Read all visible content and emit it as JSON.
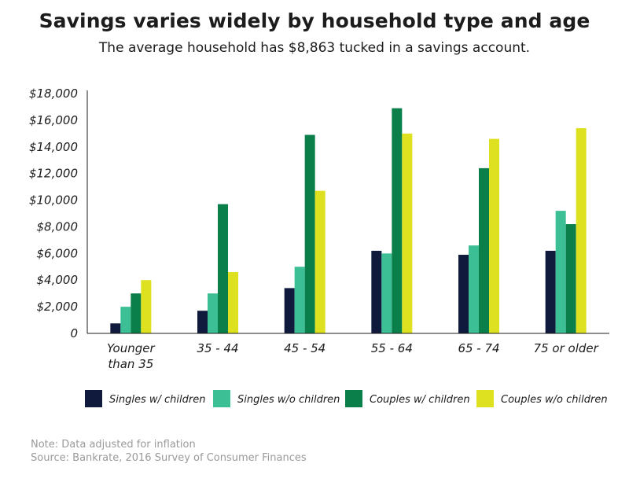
{
  "title": "Savings varies widely by household type and age",
  "subtitle": "The average household has $8,863 tucked in a savings account.",
  "note": "Note: Data adjusted for inflation",
  "source": "Source: Bankrate, 2016 Survey of Consumer Finances",
  "chart_data": {
    "type": "bar",
    "categories": [
      [
        "Younger",
        "than 35"
      ],
      [
        "35 - 44"
      ],
      [
        "45 - 54"
      ],
      [
        "55 - 64"
      ],
      [
        "65 - 74"
      ],
      [
        "75 or older"
      ]
    ],
    "series": [
      {
        "name": "Singles w/ children",
        "color": "#0f1a3c",
        "values": [
          750,
          1700,
          3400,
          6200,
          5900,
          6200
        ]
      },
      {
        "name": "Singles w/o children",
        "color": "#3dbf96",
        "values": [
          2000,
          3000,
          5000,
          6000,
          6600,
          9200
        ]
      },
      {
        "name": "Couples w/ children",
        "color": "#0a7f4a",
        "values": [
          3000,
          9700,
          14900,
          16900,
          12400,
          8200
        ]
      },
      {
        "name": "Couples w/o children",
        "color": "#dde120",
        "values": [
          4000,
          4600,
          10700,
          15000,
          14600,
          15400
        ]
      }
    ],
    "ylim": [
      0,
      18000
    ],
    "yticks": [
      "0",
      "$2,000",
      "$4,000",
      "$6,000",
      "$8,000",
      "$10,000",
      "$12,000",
      "$14,000",
      "$16,000",
      "$18,000"
    ],
    "ytick_values": [
      0,
      2000,
      4000,
      6000,
      8000,
      10000,
      12000,
      14000,
      16000,
      18000
    ],
    "grid": false,
    "legend_position": "bottom"
  }
}
